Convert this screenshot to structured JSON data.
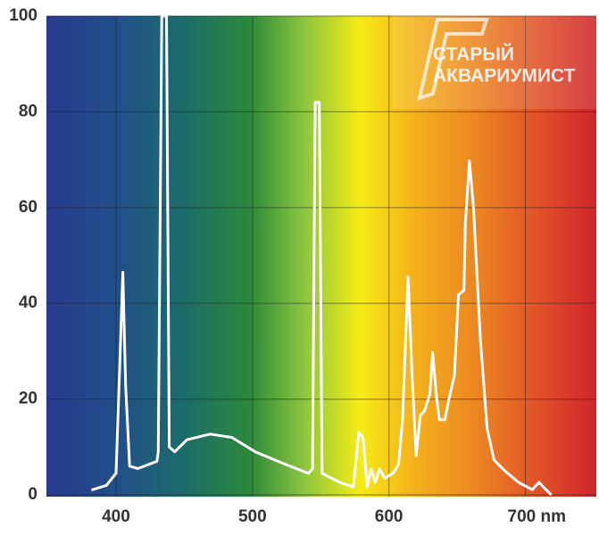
{
  "chart_data": {
    "type": "line",
    "annotations": [
      "СТАРЫЙ",
      "АКВАРИУМИСТ"
    ],
    "x": [
      382,
      393,
      400,
      403,
      405,
      407,
      410,
      416,
      430,
      431,
      433.5,
      437,
      439,
      443,
      452,
      469,
      485,
      502,
      525,
      541,
      544,
      546,
      549,
      551,
      564,
      574,
      578,
      581,
      584,
      587,
      590,
      593,
      597,
      603,
      607,
      610,
      614,
      617,
      620,
      623,
      626,
      630,
      632,
      635,
      637,
      641,
      644,
      648,
      651,
      655,
      656,
      659,
      662,
      667,
      672,
      677,
      685,
      695,
      705,
      710,
      713,
      719
    ],
    "series": [
      {
        "color": "#ffffff",
        "values": [
          1,
          2,
          4.5,
          29,
          46.5,
          23,
          6,
          5.5,
          7,
          9,
          100,
          100,
          10,
          9,
          11.5,
          12.7,
          12,
          9,
          6.3,
          4.5,
          5.4,
          82,
          82,
          4.5,
          2.6,
          1.7,
          13,
          12,
          1.7,
          5.4,
          2.6,
          5.4,
          3.5,
          4.5,
          6.3,
          15.7,
          45.5,
          25,
          8.2,
          16.6,
          17.5,
          21,
          29.7,
          20,
          15.7,
          15.7,
          20,
          25,
          41.8,
          42.7,
          56.7,
          69.8,
          60,
          32.5,
          13.8,
          7.3,
          5,
          2.6,
          1.1,
          2.6,
          1.7,
          0
        ]
      }
    ],
    "xlim": [
      349,
      752
    ],
    "ylim": [
      0,
      100
    ],
    "xticks": [
      400,
      500,
      600,
      {
        "value": 700,
        "label": "700 nm"
      }
    ],
    "yticks": [
      0,
      20,
      40,
      60,
      80,
      100
    ],
    "grid": true
  }
}
